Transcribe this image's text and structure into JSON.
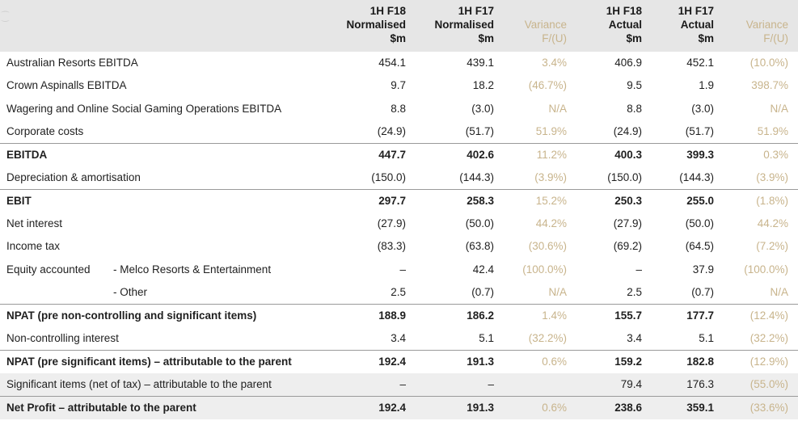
{
  "header": {
    "columns": [
      {
        "line1": "1H F18",
        "line2": "Normalised",
        "line3": "$m"
      },
      {
        "line1": "1H F17",
        "line2": "Normalised",
        "line3": "$m"
      },
      {
        "line1": "",
        "line2": "Variance",
        "line3": "F/(U)"
      },
      {
        "line1": "1H F18",
        "line2": "Actual",
        "line3": "$m"
      },
      {
        "line1": "1H F17",
        "line2": "Actual",
        "line3": "$m"
      },
      {
        "line1": "",
        "line2": "Variance",
        "line3": "F/(U)"
      }
    ]
  },
  "rows": [
    {
      "label": "Australian Resorts EBITDA",
      "sub": "",
      "c1": "454.1",
      "c2": "439.1",
      "c3": "3.4%",
      "c4": "406.9",
      "c5": "452.1",
      "c6": "(10.0%)"
    },
    {
      "label": "Crown Aspinalls EBITDA",
      "sub": "",
      "c1": "9.7",
      "c2": "18.2",
      "c3": "(46.7%)",
      "c4": "9.5",
      "c5": "1.9",
      "c6": "398.7%"
    },
    {
      "label": "Wagering and Online Social Gaming Operations EBITDA",
      "sub": "",
      "c1": "8.8",
      "c2": "(3.0)",
      "c3": "N/A",
      "c4": "8.8",
      "c5": "(3.0)",
      "c6": "N/A"
    },
    {
      "label": "Corporate costs",
      "sub": "",
      "c1": "(24.9)",
      "c2": "(51.7)",
      "c3": "51.9%",
      "c4": "(24.9)",
      "c5": "(51.7)",
      "c6": "51.9%"
    },
    {
      "label": "EBITDA",
      "sub": "",
      "c1": "447.7",
      "c2": "402.6",
      "c3": "11.2%",
      "c4": "400.3",
      "c5": "399.3",
      "c6": "0.3%"
    },
    {
      "label": "Depreciation & amortisation",
      "sub": "",
      "c1": "(150.0)",
      "c2": "(144.3)",
      "c3": "(3.9%)",
      "c4": "(150.0)",
      "c5": "(144.3)",
      "c6": "(3.9%)"
    },
    {
      "label": "EBIT",
      "sub": "",
      "c1": "297.7",
      "c2": "258.3",
      "c3": "15.2%",
      "c4": "250.3",
      "c5": "255.0",
      "c6": "(1.8%)"
    },
    {
      "label": "Net interest",
      "sub": "",
      "c1": "(27.9)",
      "c2": "(50.0)",
      "c3": "44.2%",
      "c4": "(27.9)",
      "c5": "(50.0)",
      "c6": "44.2%"
    },
    {
      "label": "Income tax",
      "sub": "",
      "c1": "(83.3)",
      "c2": "(63.8)",
      "c3": "(30.6%)",
      "c4": "(69.2)",
      "c5": "(64.5)",
      "c6": "(7.2%)"
    },
    {
      "label": "Equity accounted",
      "sub": "- Melco Resorts & Entertainment",
      "c1": "–",
      "c2": "42.4",
      "c3": "(100.0%)",
      "c4": "–",
      "c5": "37.9",
      "c6": "(100.0%)"
    },
    {
      "label": "",
      "sub": "- Other",
      "c1": "2.5",
      "c2": "(0.7)",
      "c3": "N/A",
      "c4": "2.5",
      "c5": "(0.7)",
      "c6": "N/A"
    },
    {
      "label": "NPAT (pre non-controlling and significant items)",
      "sub": "",
      "c1": "188.9",
      "c2": "186.2",
      "c3": "1.4%",
      "c4": "155.7",
      "c5": "177.7",
      "c6": "(12.4%)"
    },
    {
      "label": "Non-controlling interest",
      "sub": "",
      "c1": "3.4",
      "c2": "5.1",
      "c3": "(32.2%)",
      "c4": "3.4",
      "c5": "5.1",
      "c6": "(32.2%)"
    },
    {
      "label": "NPAT (pre significant items) – attributable to the parent",
      "sub": "",
      "c1": "192.4",
      "c2": "191.3",
      "c3": "0.6%",
      "c4": "159.2",
      "c5": "182.8",
      "c6": "(12.9%)"
    },
    {
      "label": "Significant items (net of tax) – attributable to the parent",
      "sub": "",
      "c1": "–",
      "c2": "–",
      "c3": "",
      "c4": "79.4",
      "c5": "176.3",
      "c6": "(55.0%)"
    },
    {
      "label": "Net Profit – attributable to the parent",
      "sub": "",
      "c1": "192.4",
      "c2": "191.3",
      "c3": "0.6%",
      "c4": "238.6",
      "c5": "359.1",
      "c6": "(33.6%)"
    }
  ],
  "colors": {
    "variance": "#c8b48c",
    "header_bg": "#e6e6e6",
    "shade": "#eeeeee"
  }
}
